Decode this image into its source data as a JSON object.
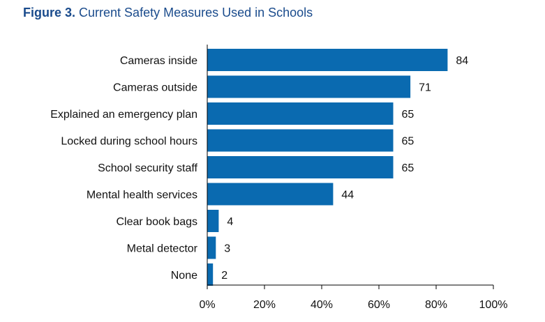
{
  "figure": {
    "label": "Figure 3.",
    "title": "Current Safety Measures Used in Schools"
  },
  "chart_data": {
    "type": "bar",
    "orientation": "horizontal",
    "title": "Figure 3. Current Safety Measures Used in Schools",
    "categories": [
      "Cameras inside",
      "Cameras outside",
      "Explained an emergency plan",
      "Locked during school hours",
      "School security staff",
      "Mental health services",
      "Clear book bags",
      "Metal detector",
      "None"
    ],
    "values": [
      84,
      71,
      65,
      65,
      65,
      44,
      4,
      3,
      2
    ],
    "value_labels": [
      "84",
      "71",
      "65",
      "65",
      "65",
      "44",
      "4",
      "3",
      "2"
    ],
    "xlim": [
      0,
      100
    ],
    "xticks": [
      0,
      20,
      40,
      60,
      80,
      100
    ],
    "xtick_labels": [
      "0%",
      "20%",
      "40%",
      "60%",
      "80%",
      "100%"
    ],
    "xlabel": "",
    "ylabel": "",
    "bar_color": "#0a6ab0",
    "grid": false,
    "legend": "none"
  }
}
